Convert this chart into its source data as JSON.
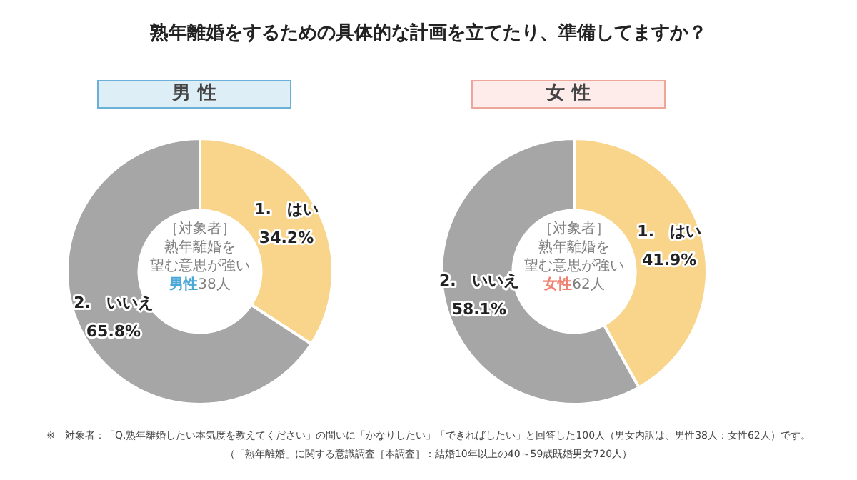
{
  "chart_data": [
    {
      "type": "donut",
      "title": "熟年離婚をするための具体的な計画を立てたり、準備してますか？",
      "subtitle": "男 性",
      "categories": [
        "1.　はい",
        "2.　いいえ"
      ],
      "values": [
        34.2,
        65.8
      ],
      "value_labels": [
        "34.2%",
        "65.8%"
      ],
      "colors": [
        "#f8d58a",
        "#a6a6a6"
      ],
      "legend": false,
      "annotations": [
        "［対象者］",
        "熟年離婚を",
        "望む意思が強い",
        "男性",
        "38人",
        "※　対象者：「Q.熟年離婚したい本気度を教えてください」の問いに「かなりしたい」「できればしたい」と回答した100人（男女内訳は、男性38人：女性62人）です。",
        "（「熟年離婚」に関する意識調査［本調査］：結婚10年以上の40～59歳既婚男女720人）"
      ]
    },
    {
      "type": "donut",
      "subtitle": "女 性",
      "categories": [
        "1.　はい",
        "2.　いいえ"
      ],
      "values": [
        41.9,
        58.1
      ],
      "value_labels": [
        "41.9%",
        "58.1%"
      ],
      "colors": [
        "#f8d58a",
        "#a6a6a6"
      ],
      "legend": false,
      "annotations": [
        "［対象者］",
        "熟年離婚を",
        "望む意思が強い",
        "女性",
        "62人"
      ]
    }
  ]
}
